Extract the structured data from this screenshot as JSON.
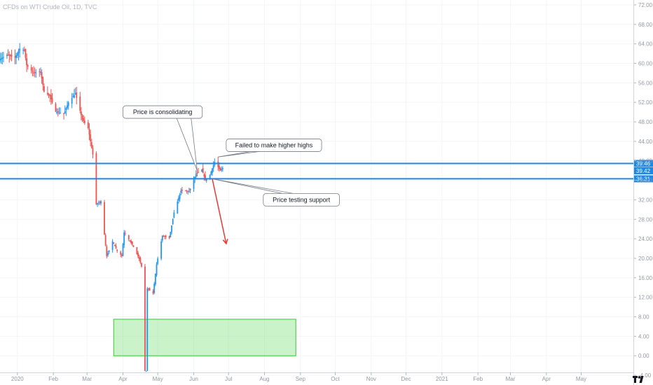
{
  "title": "CFDs on WTI Crude Oil, 1D, TVC",
  "chart_data": {
    "type": "candlestick",
    "ylim": [
      -6,
      73
    ],
    "y_ticks": [
      "-4.00",
      "0.00",
      "4.00",
      "8.00",
      "12.00",
      "16.00",
      "20.00",
      "24.00",
      "28.00",
      "32.00",
      "36.00",
      "40.00",
      "44.00",
      "48.00",
      "52.00",
      "56.00",
      "60.00",
      "64.00",
      "68.00",
      "72.00"
    ],
    "x_axis": {
      "start": "2019-12-17",
      "end": "2021-06-15",
      "ticks": [
        {
          "label": "2020",
          "date": "2020-01-01"
        },
        {
          "label": "Feb",
          "date": "2020-02-01"
        },
        {
          "label": "Mar",
          "date": "2020-03-01"
        },
        {
          "label": "Apr",
          "date": "2020-04-01"
        },
        {
          "label": "May",
          "date": "2020-05-01"
        },
        {
          "label": "Jun",
          "date": "2020-06-01"
        },
        {
          "label": "Jul",
          "date": "2020-07-01"
        },
        {
          "label": "Aug",
          "date": "2020-08-01"
        },
        {
          "label": "Sep",
          "date": "2020-09-01"
        },
        {
          "label": "Oct",
          "date": "2020-10-01"
        },
        {
          "label": "Nov",
          "date": "2020-11-01"
        },
        {
          "label": "Dec",
          "date": "2020-12-01"
        },
        {
          "label": "2021",
          "date": "2021-01-01"
        },
        {
          "label": "Feb",
          "date": "2021-02-01"
        },
        {
          "label": "Mar",
          "date": "2021-03-01"
        },
        {
          "label": "Apr",
          "date": "2021-04-01"
        },
        {
          "label": "May",
          "date": "2021-05-01"
        }
      ]
    },
    "price_points": [
      [
        "2019-12-17",
        60.9
      ],
      [
        "2019-12-23",
        61.7
      ],
      [
        "2019-12-30",
        61.2
      ],
      [
        "2020-01-03",
        63.0
      ],
      [
        "2020-01-07",
        62.7
      ],
      [
        "2020-01-09",
        59.6
      ],
      [
        "2020-01-15",
        58.0
      ],
      [
        "2020-01-21",
        58.3
      ],
      [
        "2020-01-24",
        54.2
      ],
      [
        "2020-01-29",
        53.3
      ],
      [
        "2020-02-03",
        50.1
      ],
      [
        "2020-02-10",
        49.6
      ],
      [
        "2020-02-14",
        52.0
      ],
      [
        "2020-02-20",
        53.8
      ],
      [
        "2020-02-26",
        48.5
      ],
      [
        "2020-03-02",
        46.7
      ],
      [
        "2020-03-06",
        41.3
      ],
      [
        "2020-03-09",
        31.1
      ],
      [
        "2020-03-13",
        31.7
      ],
      [
        "2020-03-18",
        20.4
      ],
      [
        "2020-03-23",
        23.5
      ],
      [
        "2020-03-27",
        21.5
      ],
      [
        "2020-03-31",
        20.5
      ],
      [
        "2020-04-02",
        25.3
      ],
      [
        "2020-04-09",
        22.8
      ],
      [
        "2020-04-15",
        19.9
      ],
      [
        "2020-04-17",
        18.3
      ],
      [
        "2020-04-20",
        -37.6
      ],
      [
        "2020-04-22",
        13.8
      ],
      [
        "2020-04-27",
        12.8
      ],
      [
        "2020-04-30",
        18.8
      ],
      [
        "2020-05-05",
        24.6
      ],
      [
        "2020-05-11",
        24.1
      ],
      [
        "2020-05-15",
        29.4
      ],
      [
        "2020-05-21",
        33.9
      ],
      [
        "2020-05-28",
        33.7
      ],
      [
        "2020-06-03",
        37.3
      ],
      [
        "2020-06-08",
        38.2
      ],
      [
        "2020-06-11",
        36.1
      ],
      [
        "2020-06-15",
        37.1
      ],
      [
        "2020-06-19",
        39.8
      ],
      [
        "2020-06-24",
        38.0
      ],
      [
        "2020-06-26",
        38.5
      ]
    ],
    "levels": [
      {
        "price": 39.46,
        "label": "39.46",
        "color": "#1e88e5"
      },
      {
        "price": 36.31,
        "label": "36.31",
        "color": "#1e88e5"
      }
    ],
    "current_price": {
      "value": 39.42,
      "label": "39.42",
      "color": "#1e88e5"
    },
    "zone": {
      "from_date": "2020-03-24",
      "to_date": "2020-08-28",
      "low": 0,
      "high": 7.5,
      "color": "#66dd66"
    },
    "forecast_arrow": {
      "from_date": "2020-06-17",
      "from_price": 36.3,
      "to_date": "2020-06-29",
      "to_price": 23.0,
      "color": "#e53935"
    },
    "annotations": [
      {
        "text": "Price is consolidating",
        "box_date": "2020-04-01",
        "box_price": 51.3,
        "point_date": "2020-06-04",
        "point_price": 38.0
      },
      {
        "text": "Failed to make higher highs",
        "box_date": "2020-06-29",
        "box_price": 44.5,
        "point_date": "2020-06-22",
        "point_price": 40.8
      },
      {
        "text": "Price testing support",
        "box_date": "2020-07-31",
        "box_price": 33.3,
        "point_date": "2020-06-17",
        "point_price": 36.3
      }
    ],
    "colors": {
      "up": "#2196f3",
      "down": "#ef5350"
    }
  }
}
